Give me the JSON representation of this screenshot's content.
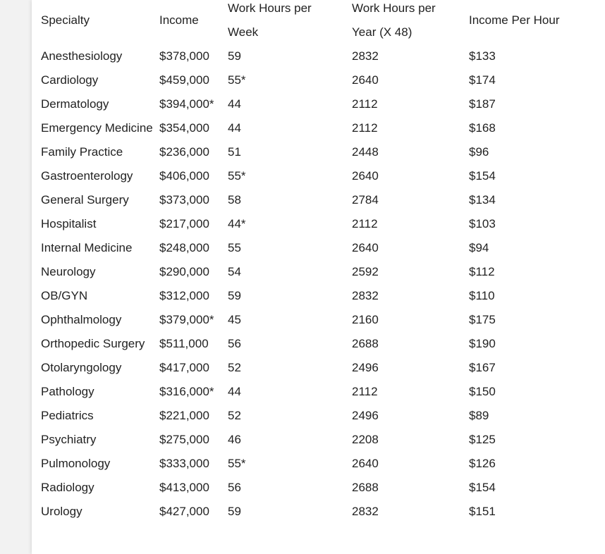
{
  "table": {
    "headers": [
      "Specialty",
      "Income",
      "Work Hours per Week",
      "Work Hours per Year (X 48)",
      "Income Per Hour"
    ],
    "rows": [
      [
        "Anesthesiology",
        "$378,000",
        "59",
        "2832",
        "$133"
      ],
      [
        "Cardiology",
        "$459,000",
        "55*",
        "2640",
        "$174"
      ],
      [
        "Dermatology",
        "$394,000*",
        "44",
        "2112",
        "$187"
      ],
      [
        "Emergency Medicine",
        "$354,000",
        "44",
        "2112",
        "$168"
      ],
      [
        "Family Practice",
        "$236,000",
        "51",
        "2448",
        "$96"
      ],
      [
        "Gastroenterology",
        "$406,000",
        "55*",
        "2640",
        "$154"
      ],
      [
        "General Surgery",
        "$373,000",
        "58",
        "2784",
        "$134"
      ],
      [
        "Hospitalist",
        "$217,000",
        "44*",
        "2112",
        "$103"
      ],
      [
        "Internal Medicine",
        "$248,000",
        "55",
        "2640",
        "$94"
      ],
      [
        "Neurology",
        "$290,000",
        "54",
        "2592",
        "$112"
      ],
      [
        "OB/GYN",
        "$312,000",
        "59",
        "2832",
        "$110"
      ],
      [
        "Ophthalmology",
        "$379,000*",
        "45",
        "2160",
        "$175"
      ],
      [
        "Orthopedic Surgery",
        "$511,000",
        "56",
        "2688",
        "$190"
      ],
      [
        "Otolaryngology",
        "$417,000",
        "52",
        "2496",
        "$167"
      ],
      [
        "Pathology",
        "$316,000*",
        "44",
        "2112",
        "$150"
      ],
      [
        "Pediatrics",
        "$221,000",
        "52",
        "2496",
        "$89"
      ],
      [
        "Psychiatry",
        "$275,000",
        "46",
        "2208",
        "$125"
      ],
      [
        "Pulmonology",
        "$333,000",
        "55*",
        "2640",
        "$126"
      ],
      [
        "Radiology",
        "$413,000",
        "56",
        "2688",
        "$154"
      ],
      [
        "Urology",
        "$427,000",
        "59",
        "2832",
        "$151"
      ]
    ]
  }
}
